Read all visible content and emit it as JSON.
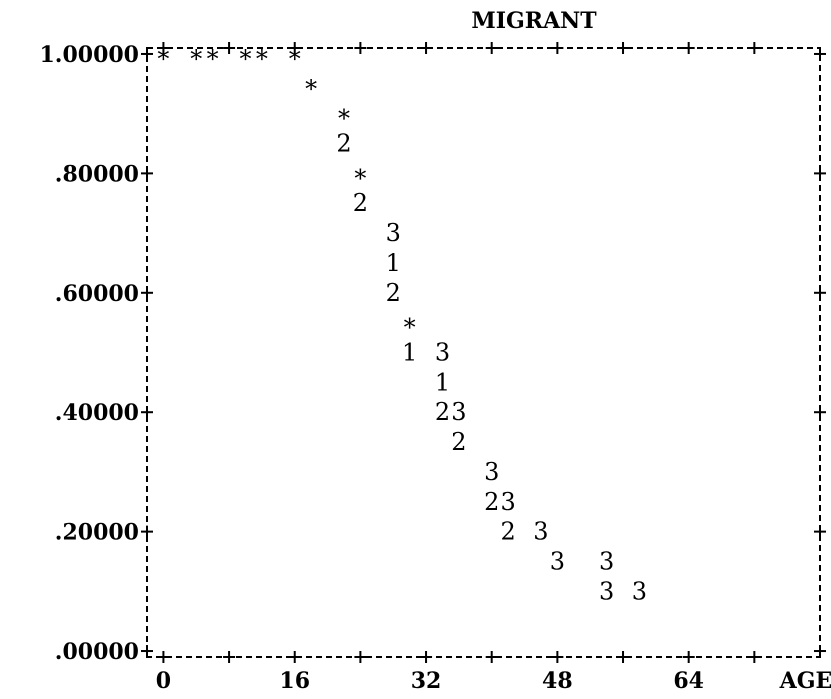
{
  "chart_data": {
    "type": "scatter",
    "title": "MIGRANT",
    "xlabel": "AGE",
    "ylabel": "",
    "xlim": [
      -2,
      80
    ],
    "ylim": [
      -0.01,
      1.01
    ],
    "x_ticks": [
      0,
      16,
      32,
      48,
      64
    ],
    "x_tick_labels": [
      "0",
      "16",
      "32",
      "48",
      "64"
    ],
    "y_ticks": [
      1.0,
      0.8,
      0.6,
      0.4,
      0.2,
      0.0
    ],
    "y_tick_labels": [
      "1.00000",
      ".80000",
      ".60000",
      ".40000",
      ".20000",
      ".00000"
    ],
    "grid": false,
    "legend": "none",
    "series": [
      {
        "symbol": "*",
        "points": [
          {
            "x": 0,
            "y": 1.0
          },
          {
            "x": 4,
            "y": 1.0
          },
          {
            "x": 6,
            "y": 1.0
          },
          {
            "x": 10,
            "y": 1.0
          },
          {
            "x": 12,
            "y": 1.0
          },
          {
            "x": 16,
            "y": 1.0
          },
          {
            "x": 18,
            "y": 0.95
          },
          {
            "x": 22,
            "y": 0.9
          },
          {
            "x": 24,
            "y": 0.8
          },
          {
            "x": 30,
            "y": 0.55
          }
        ]
      },
      {
        "symbol": "1",
        "points": [
          {
            "x": 28,
            "y": 0.65
          },
          {
            "x": 30,
            "y": 0.5
          },
          {
            "x": 34,
            "y": 0.45
          }
        ]
      },
      {
        "symbol": "2",
        "points": [
          {
            "x": 22,
            "y": 0.85
          },
          {
            "x": 24,
            "y": 0.75
          },
          {
            "x": 28,
            "y": 0.6
          },
          {
            "x": 34,
            "y": 0.4
          },
          {
            "x": 36,
            "y": 0.35
          },
          {
            "x": 40,
            "y": 0.25
          },
          {
            "x": 42,
            "y": 0.2
          }
        ]
      },
      {
        "symbol": "3",
        "points": [
          {
            "x": 28,
            "y": 0.7
          },
          {
            "x": 34,
            "y": 0.5
          },
          {
            "x": 36,
            "y": 0.4
          },
          {
            "x": 40,
            "y": 0.3
          },
          {
            "x": 42,
            "y": 0.25
          },
          {
            "x": 46,
            "y": 0.2
          },
          {
            "x": 48,
            "y": 0.15
          },
          {
            "x": 54,
            "y": 0.15
          },
          {
            "x": 54,
            "y": 0.1
          },
          {
            "x": 58,
            "y": 0.1
          }
        ]
      }
    ]
  }
}
